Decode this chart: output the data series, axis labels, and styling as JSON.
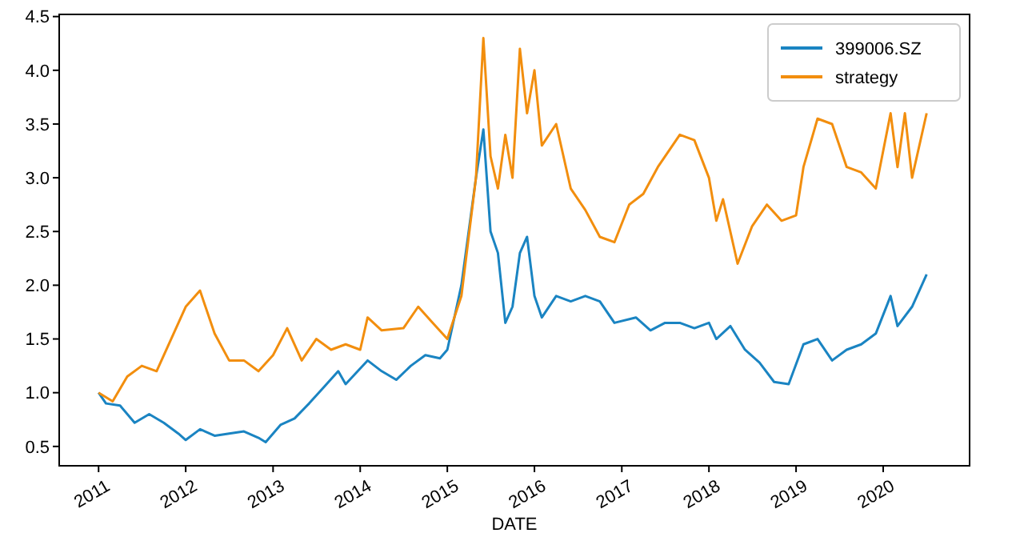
{
  "chart_data": {
    "type": "line",
    "xlabel": "DATE",
    "xlim": [
      "2010-07-20",
      "2020-12-28"
    ],
    "xticks": [
      "2011",
      "2012",
      "2013",
      "2014",
      "2015",
      "2016",
      "2017",
      "2018",
      "2019",
      "2020"
    ],
    "ylim": [
      0.32,
      4.52
    ],
    "yticks": [
      {
        "value": 0.5,
        "label": "0.5"
      },
      {
        "value": 1,
        "label": "1.0"
      },
      {
        "value": 1.5,
        "label": "1.5"
      },
      {
        "value": 2,
        "label": "2.0"
      },
      {
        "value": 2.5,
        "label": "2.5"
      },
      {
        "value": 3,
        "label": "3.0"
      },
      {
        "value": 3.5,
        "label": "3.5"
      },
      {
        "value": 4,
        "label": "4.0"
      },
      {
        "value": 4.5,
        "label": "4.5"
      }
    ],
    "legend": "top right",
    "grid": false,
    "marker": "none",
    "line_style": "solid",
    "series": [
      {
        "name": "399006.SZ",
        "color": "#1a84c2",
        "x": [
          "2011-01",
          "2011-02",
          "2011-04",
          "2011-06",
          "2011-08",
          "2011-10",
          "2011-12",
          "2012-01",
          "2012-03",
          "2012-05",
          "2012-07",
          "2012-09",
          "2012-11",
          "2012-12",
          "2013-02",
          "2013-04",
          "2013-06",
          "2013-08",
          "2013-10",
          "2013-11",
          "2014-02",
          "2014-04",
          "2014-06",
          "2014-08",
          "2014-10",
          "2014-12",
          "2015-01",
          "2015-03",
          "2015-05",
          "2015-06",
          "2015-07",
          "2015-08",
          "2015-09",
          "2015-10",
          "2015-11",
          "2015-12",
          "2016-01",
          "2016-02",
          "2016-04",
          "2016-06",
          "2016-08",
          "2016-10",
          "2016-12",
          "2017-03",
          "2017-05",
          "2017-07",
          "2017-09",
          "2017-11",
          "2018-01",
          "2018-02",
          "2018-04",
          "2018-06",
          "2018-08",
          "2018-10",
          "2018-12",
          "2019-02",
          "2019-04",
          "2019-06",
          "2019-08",
          "2019-10",
          "2019-12",
          "2020-02",
          "2020-03",
          "2020-05",
          "2020-07"
        ],
        "values": [
          1.0,
          0.9,
          0.88,
          0.72,
          0.8,
          0.72,
          0.62,
          0.56,
          0.66,
          0.6,
          0.62,
          0.64,
          0.58,
          0.54,
          0.7,
          0.76,
          0.9,
          1.05,
          1.2,
          1.08,
          1.3,
          1.2,
          1.12,
          1.25,
          1.35,
          1.32,
          1.4,
          2.0,
          3.0,
          3.45,
          2.5,
          2.3,
          1.65,
          1.8,
          2.3,
          2.45,
          1.9,
          1.7,
          1.9,
          1.85,
          1.9,
          1.85,
          1.65,
          1.7,
          1.58,
          1.65,
          1.65,
          1.6,
          1.65,
          1.5,
          1.62,
          1.4,
          1.28,
          1.1,
          1.08,
          1.45,
          1.5,
          1.3,
          1.4,
          1.45,
          1.55,
          1.9,
          1.62,
          1.8,
          2.1
        ]
      },
      {
        "name": "strategy",
        "color": "#f28e0e",
        "x": [
          "2011-01",
          "2011-03",
          "2011-05",
          "2011-07",
          "2011-09",
          "2011-11",
          "2012-01",
          "2012-03",
          "2012-05",
          "2012-07",
          "2012-09",
          "2012-11",
          "2013-01",
          "2013-03",
          "2013-05",
          "2013-07",
          "2013-09",
          "2013-11",
          "2014-01",
          "2014-02",
          "2014-04",
          "2014-07",
          "2014-09",
          "2014-11",
          "2015-01",
          "2015-03",
          "2015-05",
          "2015-06",
          "2015-07",
          "2015-08",
          "2015-09",
          "2015-10",
          "2015-11",
          "2015-12",
          "2016-01",
          "2016-02",
          "2016-04",
          "2016-06",
          "2016-08",
          "2016-10",
          "2016-12",
          "2017-02",
          "2017-04",
          "2017-06",
          "2017-09",
          "2017-11",
          "2018-01",
          "2018-02",
          "2018-03",
          "2018-05",
          "2018-07",
          "2018-09",
          "2018-11",
          "2019-01",
          "2019-02",
          "2019-04",
          "2019-06",
          "2019-08",
          "2019-10",
          "2019-12",
          "2020-02",
          "2020-03",
          "2020-04",
          "2020-05",
          "2020-07"
        ],
        "values": [
          1.0,
          0.92,
          1.15,
          1.25,
          1.2,
          1.5,
          1.8,
          1.95,
          1.55,
          1.3,
          1.3,
          1.2,
          1.35,
          1.6,
          1.3,
          1.5,
          1.4,
          1.45,
          1.4,
          1.7,
          1.58,
          1.6,
          1.8,
          1.65,
          1.5,
          1.9,
          3.0,
          4.3,
          3.2,
          2.9,
          3.4,
          3.0,
          4.2,
          3.6,
          4.0,
          3.3,
          3.5,
          2.9,
          2.7,
          2.45,
          2.4,
          2.75,
          2.85,
          3.1,
          3.4,
          3.35,
          3.0,
          2.6,
          2.8,
          2.2,
          2.55,
          2.75,
          2.6,
          2.65,
          3.1,
          3.55,
          3.5,
          3.1,
          3.05,
          2.9,
          3.6,
          3.1,
          3.6,
          3.0,
          3.6
        ]
      }
    ]
  }
}
